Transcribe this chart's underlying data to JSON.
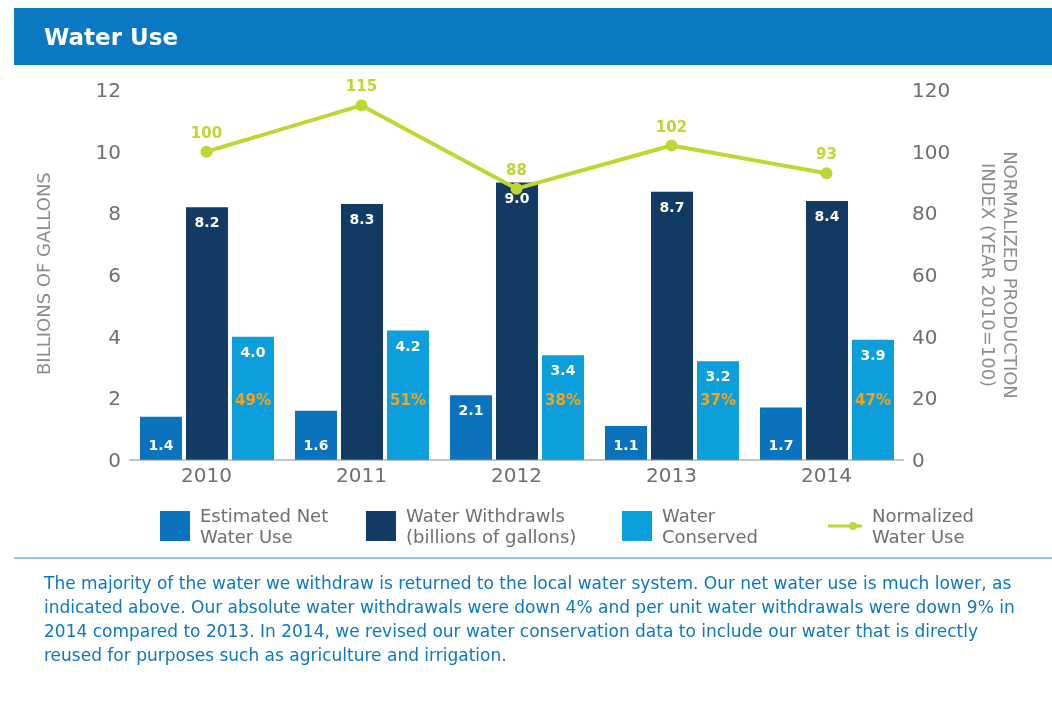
{
  "chart_data": {
    "type": "bar",
    "title": "Water Use",
    "categories": [
      "2010",
      "2011",
      "2012",
      "2013",
      "2014"
    ],
    "series": [
      {
        "name": "Estimated Net Water Use",
        "color": "#0b72bd",
        "values": [
          1.4,
          1.6,
          2.1,
          1.1,
          1.7
        ],
        "value_labels": [
          "1.4",
          "1.6",
          "2.1",
          "1.1",
          "1.7"
        ]
      },
      {
        "name": "Water Withdrawls (billions of gallons)",
        "color": "#123b63",
        "values": [
          8.2,
          8.3,
          9.0,
          8.7,
          8.4
        ],
        "value_labels": [
          "8.2",
          "8.3",
          "9.0",
          "8.7",
          "8.4"
        ]
      },
      {
        "name": "Water Conserved",
        "color": "#0d9fdb",
        "values": [
          4.0,
          4.2,
          3.4,
          3.2,
          3.9
        ],
        "value_labels": [
          "4.0",
          "4.2",
          "3.4",
          "3.2",
          "3.9"
        ]
      },
      {
        "name": "Normalized Water Use",
        "type": "line",
        "axis": "y2",
        "color": "#bfd630",
        "values": [
          100,
          115,
          88,
          102,
          93
        ],
        "value_labels": [
          "100",
          "115",
          "88",
          "102",
          "93"
        ]
      }
    ],
    "ylabel": "BILLIONS OF GALLONS",
    "y2label": "NORMALIZED PRODUCTION INDEX (YEAR 2010=100)",
    "ylim": [
      0,
      12
    ],
    "yticks": [
      0,
      2,
      4,
      6,
      8,
      10,
      12
    ],
    "y2lim": [
      0,
      120
    ],
    "y2ticks": [
      0,
      20,
      40,
      60,
      80,
      100,
      120
    ],
    "legend": "bottom",
    "marker": "circle",
    "annotations": [
      "49%",
      "51%",
      "38%",
      "37%",
      "47%",
      "The majority of the water we withdraw is returned to the local water system. Our net water use is much lower, as indicated above. Our absolute water withdrawals were down 4% and per unit water withdrawals were down 9% in 2014 compared to 2013. In 2014, we revised our water conservation data to include our water that is directly reused for purposes such as agriculture and irrigation."
    ]
  }
}
